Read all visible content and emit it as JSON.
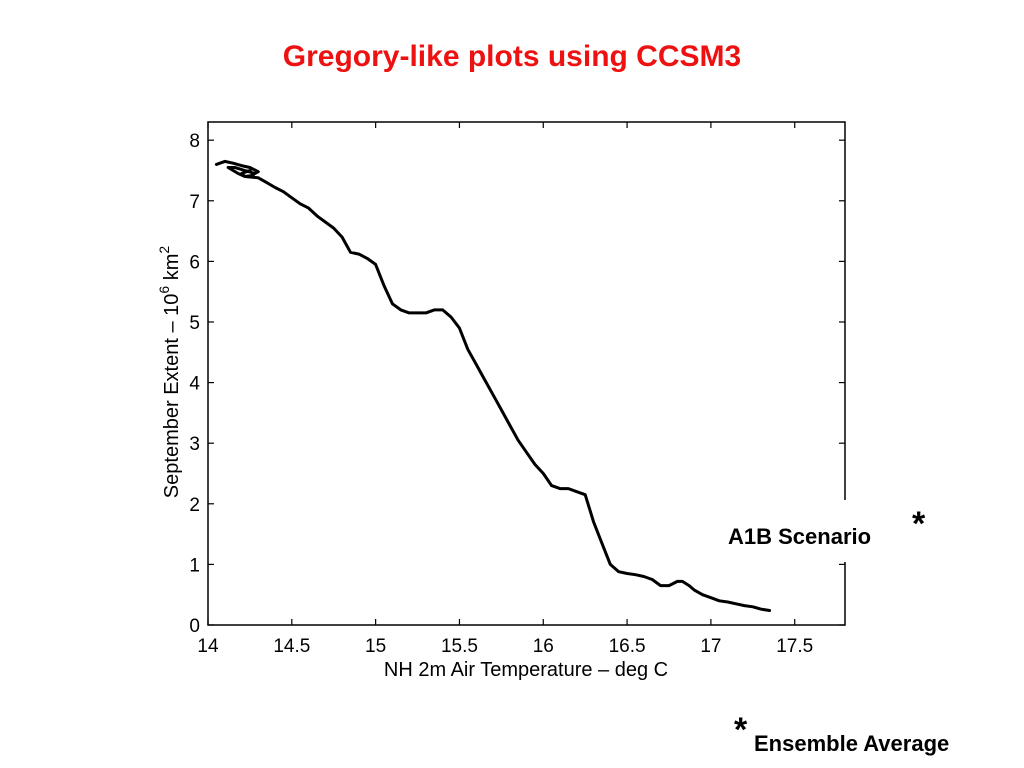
{
  "slide": {
    "title": "Gregory-like plots using CCSM3",
    "title_color": "#ee1111"
  },
  "annotations": {
    "scenario_label": "A1B Scenario",
    "scenario_marker": "*",
    "footnote_marker": "*",
    "footnote_text": "Ensemble Average"
  },
  "chart_data": {
    "type": "line",
    "xlabel": "NH 2m Air Temperature – deg C",
    "ylabel_main": "September Extent – 10",
    "ylabel_sup": "6",
    "ylabel_unit": " km",
    "ylabel_unit_sup": "2",
    "xlim": [
      14,
      17.8
    ],
    "ylim": [
      0,
      8.3
    ],
    "xticks": [
      "14",
      "14.5",
      "15",
      "15.5",
      "16",
      "16.5",
      "17",
      "17.5"
    ],
    "yticks": [
      "0",
      "1",
      "2",
      "3",
      "4",
      "5",
      "6",
      "7",
      "8"
    ],
    "grid": false,
    "line_color": "#000000",
    "series": [
      {
        "x": [
          14.05,
          14.1,
          14.15,
          14.2,
          14.25,
          14.3,
          14.28,
          14.22,
          14.16,
          14.12,
          14.18,
          14.22,
          14.27,
          14.25,
          14.2,
          14.22,
          14.3,
          14.35,
          14.4,
          14.45,
          14.5,
          14.55,
          14.6,
          14.65,
          14.7,
          14.75,
          14.8,
          14.85,
          14.9,
          14.95,
          15.0,
          15.05,
          15.1,
          15.15,
          15.2,
          15.25,
          15.3,
          15.35,
          15.4,
          15.45,
          15.5,
          15.55,
          15.6,
          15.65,
          15.7,
          15.75,
          15.8,
          15.85,
          15.9,
          15.95,
          16.0,
          16.05,
          16.1,
          16.15,
          16.2,
          16.25,
          16.3,
          16.35,
          16.4,
          16.45,
          16.5,
          16.55,
          16.6,
          16.65,
          16.7,
          16.75,
          16.8,
          16.83,
          16.87,
          16.9,
          16.95,
          17.0,
          17.05,
          17.1,
          17.15,
          17.2,
          17.25,
          17.3,
          17.35
        ],
        "y": [
          7.6,
          7.65,
          7.62,
          7.58,
          7.55,
          7.48,
          7.45,
          7.5,
          7.55,
          7.55,
          7.45,
          7.4,
          7.42,
          7.5,
          7.45,
          7.4,
          7.38,
          7.3,
          7.22,
          7.15,
          7.05,
          6.95,
          6.88,
          6.75,
          6.65,
          6.55,
          6.4,
          6.15,
          6.12,
          6.05,
          5.95,
          5.6,
          5.3,
          5.2,
          5.15,
          5.15,
          5.15,
          5.2,
          5.2,
          5.08,
          4.9,
          4.55,
          4.3,
          4.05,
          3.8,
          3.55,
          3.3,
          3.05,
          2.85,
          2.65,
          2.5,
          2.3,
          2.25,
          2.25,
          2.2,
          2.15,
          1.7,
          1.35,
          1.0,
          0.88,
          0.85,
          0.83,
          0.8,
          0.75,
          0.65,
          0.65,
          0.72,
          0.72,
          0.65,
          0.58,
          0.5,
          0.45,
          0.4,
          0.38,
          0.35,
          0.32,
          0.3,
          0.26,
          0.24
        ]
      }
    ]
  }
}
